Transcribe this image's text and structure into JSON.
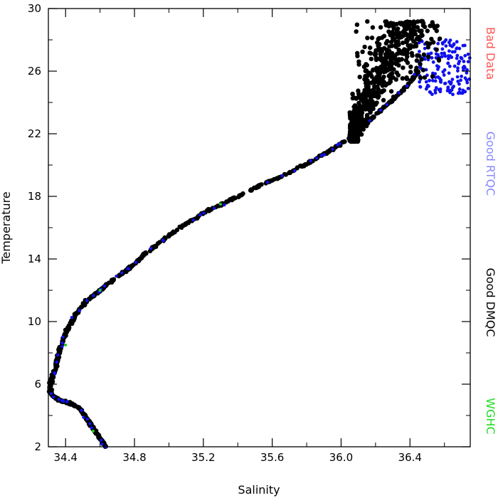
{
  "chart_data": {
    "type": "scatter",
    "title": "",
    "xlabel": "Salinity",
    "ylabel": "Temperature",
    "xlim": [
      34.3,
      36.75
    ],
    "ylim": [
      2,
      30
    ],
    "x_ticks": [
      34.4,
      34.8,
      35.2,
      35.6,
      36.0,
      36.4
    ],
    "x_tick_labels": [
      "34.4",
      "34.8",
      "35.2",
      "35.6",
      "36.0",
      "36.4"
    ],
    "y_ticks": [
      2,
      6,
      10,
      14,
      18,
      22,
      26,
      30
    ],
    "y_tick_labels": [
      "2",
      "6",
      "10",
      "14",
      "18",
      "22",
      "26",
      "30"
    ],
    "grid": false,
    "legend_placement": "right-vertical",
    "legend": [
      {
        "label": "Bad Data",
        "color": "#ff5555"
      },
      {
        "label": "Good RTQC",
        "color": "#8888ff"
      },
      {
        "label": "Good DMQC",
        "color": "#000000"
      },
      {
        "label": "WGHC",
        "color": "#22dd22"
      }
    ],
    "series": [
      {
        "name": "Good DMQC",
        "color": "#000000",
        "profile": [
          [
            34.635,
            2.0
          ],
          [
            34.6,
            2.5
          ],
          [
            34.56,
            3.2
          ],
          [
            34.52,
            3.8
          ],
          [
            34.48,
            4.5
          ],
          [
            34.42,
            4.8
          ],
          [
            34.36,
            5.0
          ],
          [
            34.32,
            5.3
          ],
          [
            34.31,
            5.8
          ],
          [
            34.32,
            6.3
          ],
          [
            34.34,
            7.0
          ],
          [
            34.36,
            8.0
          ],
          [
            34.39,
            9.0
          ],
          [
            34.42,
            9.7
          ],
          [
            34.46,
            10.5
          ],
          [
            34.52,
            11.3
          ],
          [
            34.6,
            12.0
          ],
          [
            34.68,
            12.7
          ],
          [
            34.78,
            13.5
          ],
          [
            34.88,
            14.5
          ],
          [
            35.0,
            15.5
          ],
          [
            35.12,
            16.4
          ],
          [
            35.25,
            17.2
          ],
          [
            35.4,
            18.0
          ],
          [
            35.55,
            18.8
          ],
          [
            35.7,
            19.5
          ],
          [
            35.82,
            20.2
          ],
          [
            35.95,
            21.0
          ],
          [
            36.08,
            22.0
          ],
          [
            36.18,
            23.0
          ],
          [
            36.28,
            24.0
          ],
          [
            36.38,
            25.0
          ],
          [
            36.45,
            26.0
          ]
        ],
        "cloud_center": [
          36.35,
          24.0
        ],
        "cloud_extent": [
          36.05,
          36.62,
          21.5,
          29.2
        ]
      },
      {
        "name": "Good RTQC",
        "color": "#1111ee",
        "cluster": [
          36.45,
          36.75,
          24.5,
          28.0
        ]
      },
      {
        "name": "WGHC",
        "color": "#22cc22",
        "sample_points": [
          [
            34.56,
            3.0
          ],
          [
            34.4,
            8.5
          ],
          [
            35.3,
            17.5
          ],
          [
            34.6,
            12.0
          ]
        ]
      }
    ]
  }
}
